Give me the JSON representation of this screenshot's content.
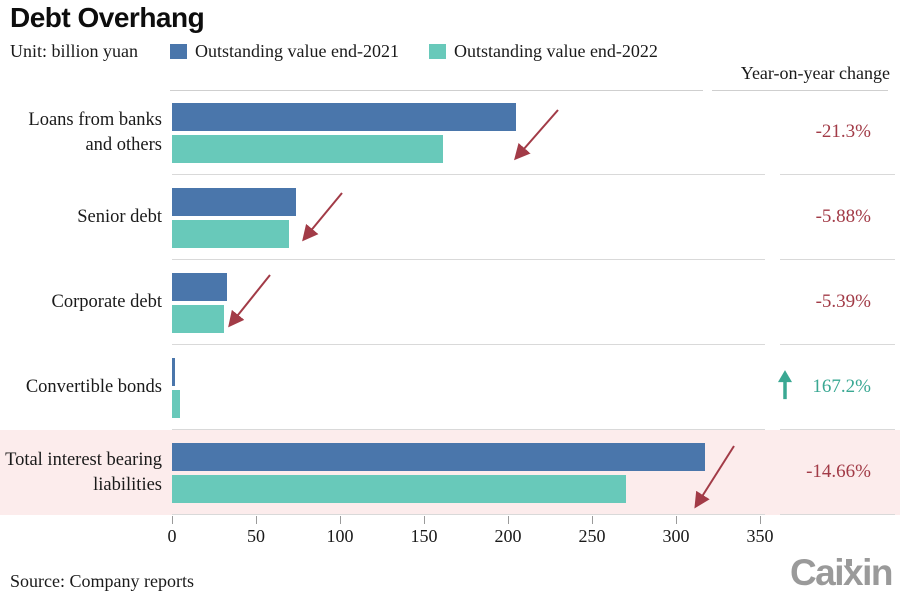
{
  "header": {
    "title": "Debt Overhang",
    "unit": "Unit: billion yuan",
    "yoy_header": "Year-on-year change"
  },
  "legend": [
    {
      "label": "Outstanding value end-2021",
      "color": "#4a76ab"
    },
    {
      "label": "Outstanding value end-2022",
      "color": "#68c9ba"
    }
  ],
  "rows": [
    {
      "label": "Loans from banks and others",
      "v2021": 205,
      "v2022": 161.3,
      "change": "-21.3%",
      "direction": "down",
      "highlight": false
    },
    {
      "label": "Senior debt",
      "v2021": 74,
      "v2022": 69.6,
      "change": "-5.88%",
      "direction": "down",
      "highlight": false
    },
    {
      "label": "Corporate debt",
      "v2021": 33,
      "v2022": 31.2,
      "change": "-5.39%",
      "direction": "down",
      "highlight": false
    },
    {
      "label": "Convertible bonds",
      "v2021": 1.8,
      "v2022": 4.8,
      "change": "167.2%",
      "direction": "up",
      "highlight": false
    },
    {
      "label": "Total interest bearing liabilities",
      "v2021": 317,
      "v2022": 270.5,
      "change": "-14.66%",
      "direction": "down",
      "highlight": true
    }
  ],
  "chart_data": {
    "type": "bar",
    "orientation": "horizontal",
    "title": "Debt Overhang",
    "unit": "billion yuan",
    "categories": [
      "Loans from banks and others",
      "Senior debt",
      "Corporate debt",
      "Convertible bonds",
      "Total interest bearing liabilities"
    ],
    "series": [
      {
        "name": "Outstanding value end-2021",
        "color": "#4a76ab",
        "values": [
          205,
          74,
          33,
          1.8,
          317
        ]
      },
      {
        "name": "Outstanding value end-2022",
        "color": "#68c9ba",
        "values": [
          161.3,
          69.6,
          31.2,
          4.8,
          270.5
        ]
      }
    ],
    "annotations": {
      "yoy_change": [
        "-21.3%",
        "-5.88%",
        "-5.39%",
        "167.2%",
        "-14.66%"
      ]
    },
    "xlim": [
      0,
      350
    ],
    "x_ticks": [
      0,
      50,
      100,
      150,
      200,
      250,
      300,
      350
    ],
    "grid": false,
    "legend_position": "top",
    "highlighted_category": "Total interest bearing liabilities"
  },
  "colors": {
    "bar_2021": "#4a76ab",
    "bar_2022": "#68c9ba",
    "negative": "#a23b47",
    "positive": "#3aa893",
    "highlight_bg": "#fcecec",
    "divider": "#d9d9d9"
  },
  "footer": {
    "source": "Source: Company reports",
    "logo": "Caixin"
  }
}
